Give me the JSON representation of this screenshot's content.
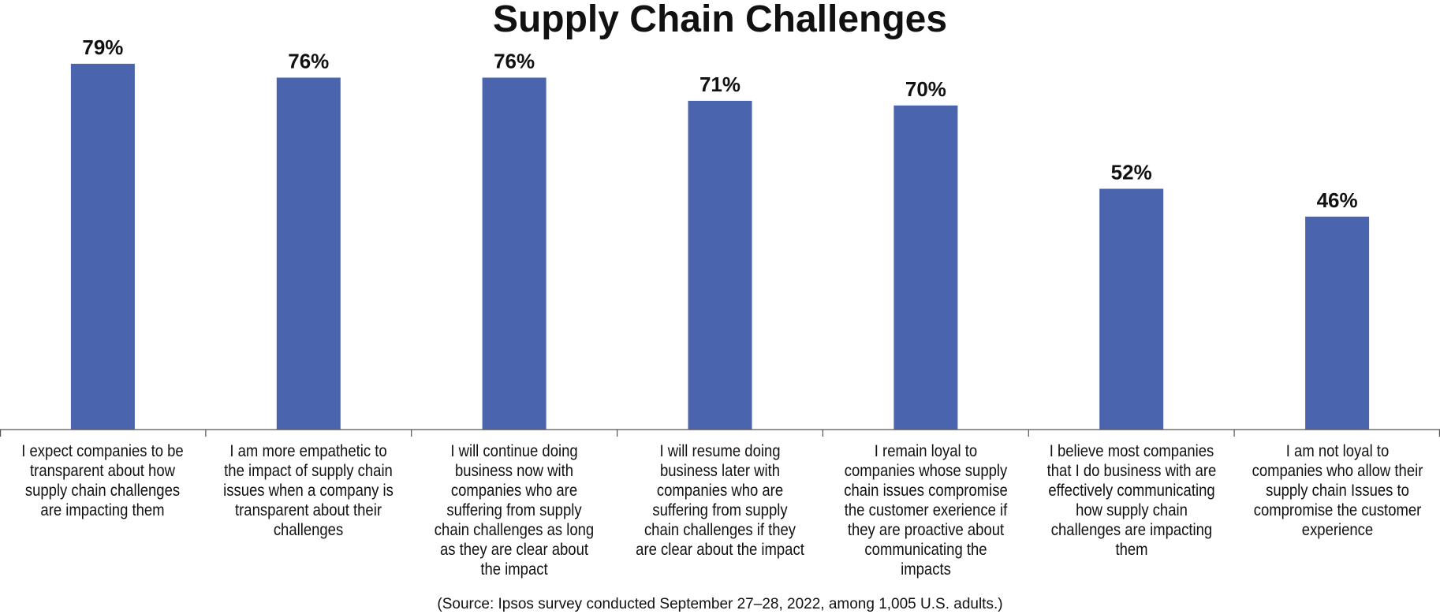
{
  "chart_data": {
    "type": "bar",
    "title": "Supply Chain Challenges",
    "categories": [
      "I expect companies to be transparent about how supply chain challenges are impacting them",
      "I am more empathetic to the impact of supply chain issues when a company is transparent about their challenges",
      "I will continue doing business now with companies who are suffering from supply chain challenges as long as they are clear about the impact",
      "I will resume doing business later with companies who are suffering from supply chain challenges if they are clear about the impact",
      "I remain loyal to companies whose supply chain issues compromise the customer exerience if they are proactive about communicating the impacts",
      "I believe most companies that I do business with are effectively communicating how supply chain challenges are impacting them",
      "I am not loyal to companies who allow their supply chain Issues to compromise the customer experience"
    ],
    "values": [
      79,
      76,
      76,
      71,
      70,
      52,
      46
    ],
    "value_labels": [
      "79%",
      "76%",
      "76%",
      "71%",
      "70%",
      "52%",
      "46%"
    ],
    "unit": "%",
    "ylim": [
      0,
      100
    ],
    "grid": false,
    "legend": "none",
    "bar_color": "#4a65ae",
    "source": "(Source: Ipsos survey conducted September 27–28, 2022, among 1,005 U.S. adults.)"
  }
}
